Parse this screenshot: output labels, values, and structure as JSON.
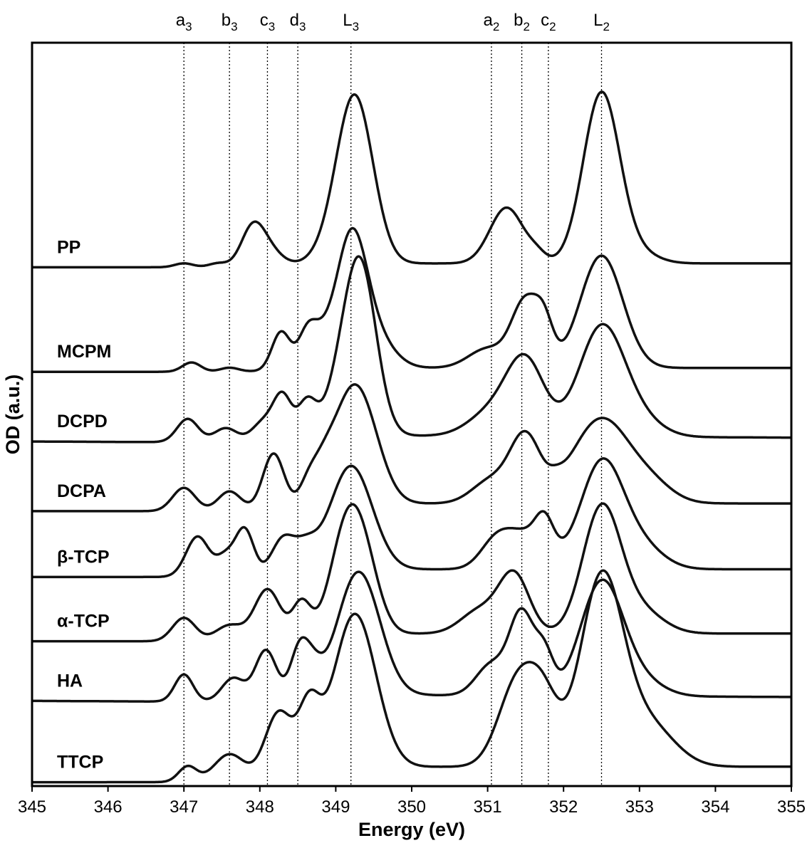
{
  "chart_data": {
    "type": "line",
    "title": "",
    "xlabel": "Energy (eV)",
    "ylabel": "OD (a.u.)",
    "xlim": [
      345,
      355
    ],
    "ylim": [
      0,
      9.6
    ],
    "x_ticks": [
      "345",
      "346",
      "347",
      "348",
      "349",
      "350",
      "351",
      "352",
      "353",
      "354",
      "355"
    ],
    "y_ticks": [],
    "grid": false,
    "legend": "none (series labelled directly on the left)",
    "line_color": "#111111",
    "reference_lines": [
      {
        "base": "a",
        "sub": "3",
        "x": 347.0
      },
      {
        "base": "b",
        "sub": "3",
        "x": 347.6
      },
      {
        "base": "c",
        "sub": "3",
        "x": 348.1
      },
      {
        "base": "d",
        "sub": "3",
        "x": 348.5
      },
      {
        "base": "L",
        "sub": "3",
        "x": 349.2
      },
      {
        "base": "a",
        "sub": "2",
        "x": 351.05
      },
      {
        "base": "b",
        "sub": "2",
        "x": 351.45
      },
      {
        "base": "c",
        "sub": "2",
        "x": 351.8
      },
      {
        "base": "L",
        "sub": "2",
        "x": 352.5
      }
    ],
    "series": [
      {
        "name": "PP",
        "offset": 6.7,
        "slope": 0.0,
        "bg": [
          0.05,
          0.0,
          0.2
        ],
        "peaks": [
          [
            347.0,
            0.05,
            0.12
          ],
          [
            347.45,
            0.05,
            0.12
          ],
          [
            347.9,
            0.45,
            0.15
          ],
          [
            348.1,
            0.22,
            0.18
          ],
          [
            348.9,
            0.1,
            0.25
          ],
          [
            349.25,
            2.15,
            0.24
          ],
          [
            351.25,
            0.72,
            0.22
          ],
          [
            351.65,
            0.1,
            0.12
          ],
          [
            352.5,
            2.2,
            0.24
          ],
          [
            353.0,
            0.12,
            0.25
          ]
        ]
      },
      {
        "name": "MCPM",
        "offset": 5.35,
        "slope": 0.0,
        "bg": [
          0.05,
          0.0,
          0.2
        ],
        "peaks": [
          [
            347.1,
            0.12,
            0.12
          ],
          [
            347.6,
            0.05,
            0.12
          ],
          [
            348.28,
            0.5,
            0.12
          ],
          [
            348.62,
            0.42,
            0.12
          ],
          [
            348.8,
            0.3,
            0.15
          ],
          [
            349.2,
            1.6,
            0.2
          ],
          [
            349.5,
            0.4,
            0.25
          ],
          [
            351.0,
            0.25,
            0.25
          ],
          [
            351.5,
            0.85,
            0.18
          ],
          [
            351.75,
            0.45,
            0.12
          ],
          [
            352.5,
            1.45,
            0.28
          ]
        ]
      },
      {
        "name": "DCPD",
        "offset": 4.45,
        "slope": -0.005,
        "bg": [
          0.1,
          0.0,
          0.2
        ],
        "peaks": [
          [
            347.05,
            0.3,
            0.14
          ],
          [
            347.55,
            0.18,
            0.15
          ],
          [
            348.05,
            0.25,
            0.15
          ],
          [
            348.3,
            0.55,
            0.12
          ],
          [
            348.62,
            0.45,
            0.12
          ],
          [
            349.2,
            1.1,
            0.25
          ],
          [
            349.35,
            1.35,
            0.2
          ],
          [
            351.05,
            0.3,
            0.3
          ],
          [
            351.5,
            0.95,
            0.25
          ],
          [
            352.5,
            1.4,
            0.3
          ],
          [
            353.0,
            0.2,
            0.3
          ]
        ]
      },
      {
        "name": "DCPA",
        "offset": 3.55,
        "slope": 0.0,
        "bg": [
          0.1,
          0.0,
          0.2
        ],
        "peaks": [
          [
            347.0,
            0.3,
            0.15
          ],
          [
            347.6,
            0.25,
            0.15
          ],
          [
            348.18,
            0.72,
            0.14
          ],
          [
            348.65,
            0.3,
            0.12
          ],
          [
            348.85,
            0.2,
            0.12
          ],
          [
            349.1,
            0.75,
            0.25
          ],
          [
            349.35,
            1.0,
            0.25
          ],
          [
            351.05,
            0.3,
            0.25
          ],
          [
            351.5,
            0.85,
            0.2
          ],
          [
            351.9,
            0.08,
            0.1
          ],
          [
            352.25,
            0.5,
            0.3
          ],
          [
            352.6,
            0.75,
            0.3
          ],
          [
            353.1,
            0.3,
            0.3
          ]
        ]
      },
      {
        "name": "β-TCP",
        "offset": 2.7,
        "slope": 0.0,
        "bg": [
          0.1,
          0.0,
          0.2
        ],
        "peaks": [
          [
            347.18,
            0.52,
            0.15
          ],
          [
            347.55,
            0.25,
            0.12
          ],
          [
            347.8,
            0.6,
            0.12
          ],
          [
            348.3,
            0.45,
            0.15
          ],
          [
            348.6,
            0.3,
            0.15
          ],
          [
            349.2,
            1.35,
            0.28
          ],
          [
            351.1,
            0.3,
            0.2
          ],
          [
            351.5,
            0.45,
            0.28
          ],
          [
            351.75,
            0.4,
            0.12
          ],
          [
            352.5,
            1.35,
            0.28
          ],
          [
            353.0,
            0.3,
            0.3
          ]
        ]
      },
      {
        "name": "α-TCP",
        "offset": 1.87,
        "slope": 0.0,
        "bg": [
          0.1,
          0.0,
          0.2
        ],
        "peaks": [
          [
            347.0,
            0.3,
            0.15
          ],
          [
            347.6,
            0.2,
            0.18
          ],
          [
            348.1,
            0.65,
            0.17
          ],
          [
            348.55,
            0.45,
            0.12
          ],
          [
            349.15,
            1.35,
            0.22
          ],
          [
            349.4,
            0.6,
            0.2
          ],
          [
            350.9,
            0.3,
            0.25
          ],
          [
            351.35,
            0.75,
            0.2
          ],
          [
            352.5,
            1.6,
            0.25
          ],
          [
            353.0,
            0.3,
            0.3
          ]
        ]
      },
      {
        "name": "HA",
        "offset": 1.1,
        "slope": -0.005,
        "bg": [
          0.1,
          0.0,
          0.2
        ],
        "peaks": [
          [
            347.0,
            0.35,
            0.12
          ],
          [
            347.65,
            0.3,
            0.15
          ],
          [
            348.08,
            0.65,
            0.14
          ],
          [
            348.52,
            0.62,
            0.12
          ],
          [
            348.7,
            0.3,
            0.12
          ],
          [
            349.3,
            1.6,
            0.28
          ],
          [
            351.05,
            0.4,
            0.2
          ],
          [
            351.45,
            1.05,
            0.16
          ],
          [
            351.75,
            0.5,
            0.12
          ],
          [
            352.5,
            1.45,
            0.28
          ],
          [
            353.0,
            0.2,
            0.3
          ]
        ]
      },
      {
        "name": "TTCP",
        "offset": 0.05,
        "slope": 0.0,
        "bg": [
          0.2,
          0.0,
          0.2
        ],
        "peaks": [
          [
            347.05,
            0.2,
            0.12
          ],
          [
            347.6,
            0.35,
            0.2
          ],
          [
            348.25,
            0.85,
            0.18
          ],
          [
            348.65,
            0.8,
            0.14
          ],
          [
            349.25,
            2.0,
            0.28
          ],
          [
            351.4,
            1.1,
            0.25
          ],
          [
            351.75,
            0.7,
            0.2
          ],
          [
            352.5,
            2.4,
            0.28
          ],
          [
            353.1,
            0.55,
            0.35
          ]
        ]
      }
    ]
  }
}
